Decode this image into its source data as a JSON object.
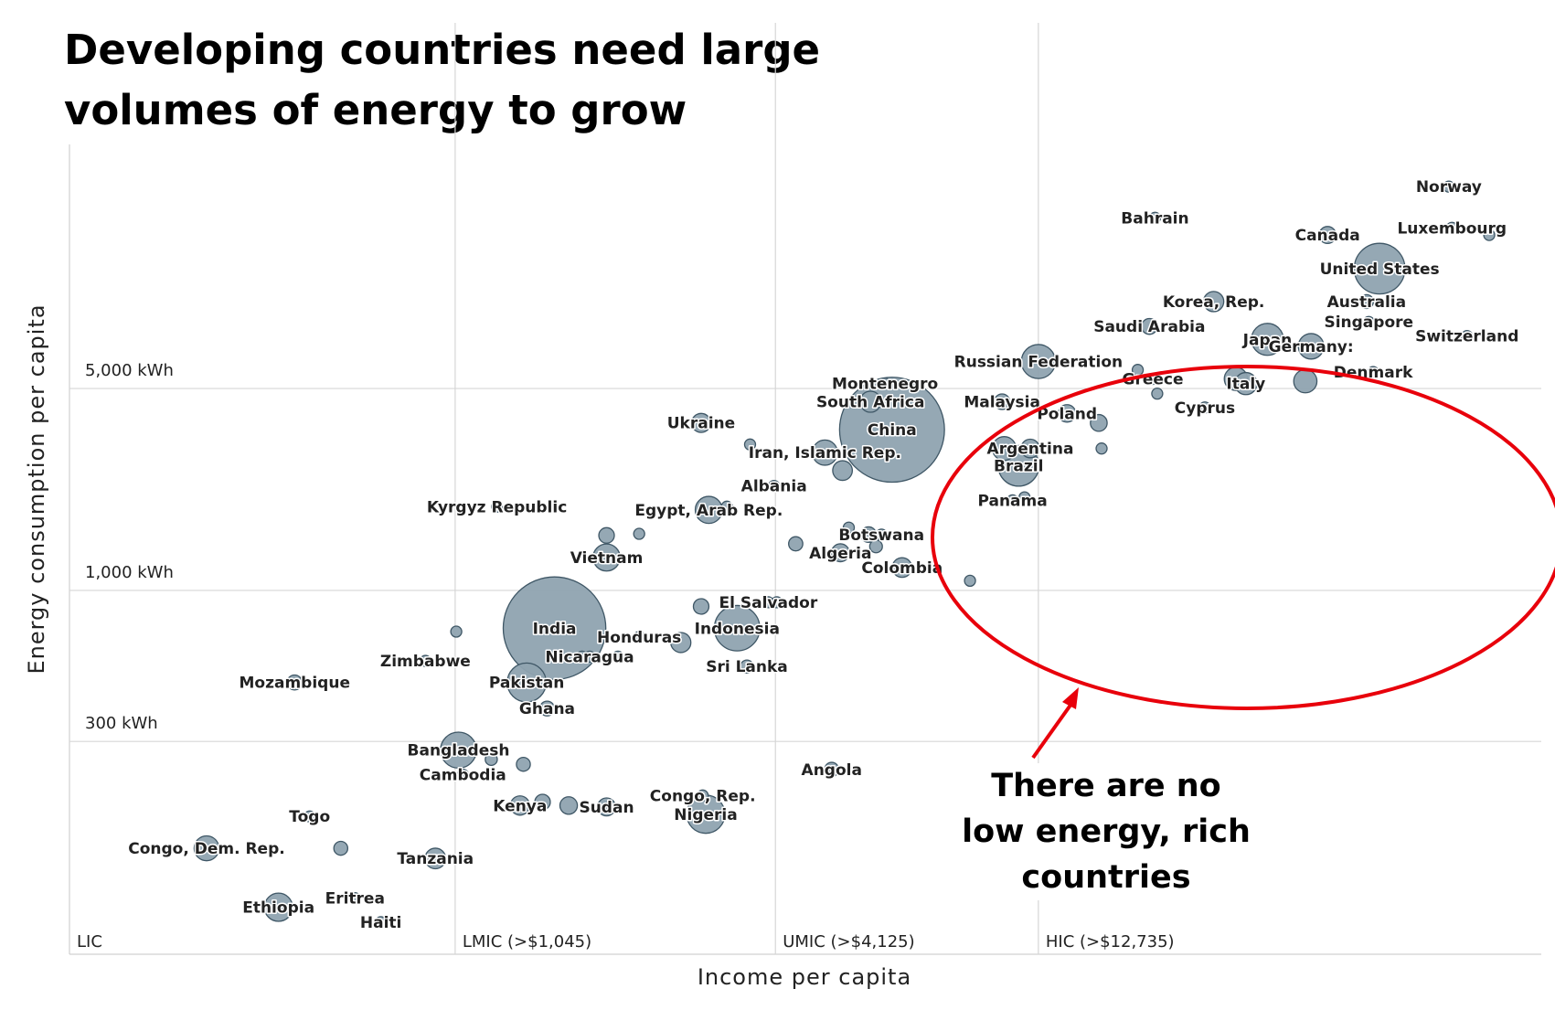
{
  "chart_data": {
    "type": "scatter",
    "title": "Developing countries need large volumes of energy to grow",
    "title_lines": [
      "Developing countries need large",
      "volumes of energy to grow"
    ],
    "xlabel": "Income per capita",
    "ylabel": "Energy consumption per capita",
    "ylim": [
      55,
      35000
    ],
    "xlim": [
      200,
      110000
    ],
    "x_scale": "log",
    "y_scale": "log",
    "y_ticks": [
      {
        "value": 300,
        "label": "300 kWh"
      },
      {
        "value": 1000,
        "label": "1,000 kWh"
      },
      {
        "value": 5000,
        "label": "5,000 kWh"
      }
    ],
    "income_bands": [
      {
        "label": "LIC",
        "from": 200
      },
      {
        "label": "LMIC (>$1,045)",
        "from": 1045
      },
      {
        "label": "UMIC (>$4,125)",
        "from": 4125
      },
      {
        "label": "HIC (>$12,735)",
        "from": 12735
      }
    ],
    "grid": true,
    "marker_color": "#8fa3b0",
    "marker_edge": "#3f5766",
    "annotation": {
      "lines": [
        "There are no",
        "low energy, rich countries"
      ],
      "ellipse_color": "#e8000b",
      "arrow_color": "#e8000b"
    },
    "points": [
      {
        "name": "Norway",
        "x": 74000,
        "y": 25000,
        "pop": 5
      },
      {
        "name": "Bahrain",
        "x": 21000,
        "y": 19500,
        "pop": 1.3
      },
      {
        "name": "Luxembourg",
        "x": 75000,
        "y": 18000,
        "pop": 0.6
      },
      {
        "name": "Canada",
        "x": 44000,
        "y": 17000,
        "pop": 36
      },
      {
        "name": "United States",
        "x": 55000,
        "y": 13000,
        "pop": 320
      },
      {
        "name": "Australia",
        "x": 52000,
        "y": 10000,
        "pop": 24
      },
      {
        "name": "Korea, Rep.",
        "x": 27000,
        "y": 10000,
        "pop": 51
      },
      {
        "name": "Saudi Arabia",
        "x": 20500,
        "y": 8200,
        "pop": 31
      },
      {
        "name": "Singapore",
        "x": 52500,
        "y": 8500,
        "pop": 5.5
      },
      {
        "name": "Switzerland",
        "x": 80000,
        "y": 7600,
        "pop": 8.2
      },
      {
        "name": "Japan",
        "x": 34000,
        "y": 7400,
        "pop": 127
      },
      {
        "name": "Germany:",
        "x": 41000,
        "y": 7000,
        "pop": 81
      },
      {
        "name": "Russian Federation",
        "x": 12736,
        "y": 6200,
        "pop": 144
      },
      {
        "name": "Greece",
        "x": 20800,
        "y": 5400,
        "pop": 11
      },
      {
        "name": "Denmark",
        "x": 53500,
        "y": 5700,
        "pop": 5.7
      },
      {
        "name": "Italy",
        "x": 31000,
        "y": 5200,
        "pop": 61
      },
      {
        "name": "Cyprus",
        "x": 26000,
        "y": 4300,
        "pop": 1.2
      },
      {
        "name": "Montenegro",
        "x": 6600,
        "y": 5200,
        "pop": 0.6
      },
      {
        "name": "South Africa",
        "x": 6200,
        "y": 4500,
        "pop": 55
      },
      {
        "name": "Malaysia",
        "x": 10900,
        "y": 4500,
        "pop": 30
      },
      {
        "name": "Poland",
        "x": 14400,
        "y": 4100,
        "pop": 38
      },
      {
        "name": "China",
        "x": 6800,
        "y": 3600,
        "pop": 1370
      },
      {
        "name": "Ukraine",
        "x": 3000,
        "y": 3800,
        "pop": 45
      },
      {
        "name": "Argentina",
        "x": 12300,
        "y": 3100,
        "pop": 43
      },
      {
        "name": "Iran, Islamic Rep.",
        "x": 5100,
        "y": 3000,
        "pop": 79
      },
      {
        "name": "Brazil",
        "x": 11700,
        "y": 2700,
        "pop": 206
      },
      {
        "name": "Albania",
        "x": 4100,
        "y": 2300,
        "pop": 2.9
      },
      {
        "name": "Panama",
        "x": 11400,
        "y": 2050,
        "pop": 3.9
      },
      {
        "name": "Kyrgyz Republic",
        "x": 1250,
        "y": 1950,
        "pop": 6
      },
      {
        "name": "Egypt, Arab Rep.",
        "x": 3100,
        "y": 1900,
        "pop": 91
      },
      {
        "name": "Botswana",
        "x": 6500,
        "y": 1560,
        "pop": 2.2
      },
      {
        "name": "Vietnam",
        "x": 2000,
        "y": 1300,
        "pop": 91
      },
      {
        "name": "Algeria",
        "x": 5450,
        "y": 1350,
        "pop": 40
      },
      {
        "name": "Colombia",
        "x": 7100,
        "y": 1200,
        "pop": 48
      },
      {
        "name": "El Salvador",
        "x": 4000,
        "y": 910,
        "pop": 6.3
      },
      {
        "name": "India",
        "x": 1600,
        "y": 740,
        "pop": 1310
      },
      {
        "name": "Honduras",
        "x": 2300,
        "y": 690,
        "pop": 8.1
      },
      {
        "name": "Indonesia",
        "x": 3500,
        "y": 740,
        "pop": 257
      },
      {
        "name": "Nicaragua",
        "x": 1860,
        "y": 590,
        "pop": 6.1
      },
      {
        "name": "Zimbabwe",
        "x": 920,
        "y": 570,
        "pop": 15
      },
      {
        "name": "Sri Lanka",
        "x": 3650,
        "y": 545,
        "pop": 21
      },
      {
        "name": "Mozambique",
        "x": 525,
        "y": 480,
        "pop": 28
      },
      {
        "name": "Pakistan",
        "x": 1420,
        "y": 480,
        "pop": 189
      },
      {
        "name": "Ghana",
        "x": 1550,
        "y": 390,
        "pop": 27
      },
      {
        "name": "Bangladesh",
        "x": 1060,
        "y": 280,
        "pop": 161
      },
      {
        "name": "Cambodia",
        "x": 1080,
        "y": 230,
        "pop": 15.6
      },
      {
        "name": "Angola",
        "x": 5250,
        "y": 240,
        "pop": 25
      },
      {
        "name": "Congo, Rep.",
        "x": 3020,
        "y": 195,
        "pop": 4.6
      },
      {
        "name": "Kenya",
        "x": 1380,
        "y": 180,
        "pop": 46
      },
      {
        "name": "Sudan",
        "x": 2000,
        "y": 178,
        "pop": 40
      },
      {
        "name": "Nigeria",
        "x": 3060,
        "y": 168,
        "pop": 182
      },
      {
        "name": "Togo",
        "x": 560,
        "y": 165,
        "pop": 7.3
      },
      {
        "name": "Congo, Dem. Rep.",
        "x": 360,
        "y": 128,
        "pop": 77
      },
      {
        "name": "Tanzania",
        "x": 960,
        "y": 118,
        "pop": 53
      },
      {
        "name": "Eritrea",
        "x": 680,
        "y": 86,
        "pop": 5
      },
      {
        "name": "Ethiopia",
        "x": 490,
        "y": 80,
        "pop": 99
      },
      {
        "name": "Haiti",
        "x": 760,
        "y": 71,
        "pop": 10.7
      }
    ],
    "unlabeled_points": [
      {
        "x": 2000,
        "y": 1550,
        "pop": 30
      },
      {
        "x": 2300,
        "y": 1570,
        "pop": 12
      },
      {
        "x": 3350,
        "y": 1950,
        "pop": 10
      },
      {
        "x": 3700,
        "y": 3200,
        "pop": 6
      },
      {
        "x": 4500,
        "y": 1450,
        "pop": 25
      },
      {
        "x": 5500,
        "y": 2600,
        "pop": 48
      },
      {
        "x": 5650,
        "y": 1650,
        "pop": 10
      },
      {
        "x": 6150,
        "y": 1560,
        "pop": 30
      },
      {
        "x": 6350,
        "y": 1420,
        "pop": 20
      },
      {
        "x": 9500,
        "y": 1080,
        "pop": 6
      },
      {
        "x": 12000,
        "y": 2100,
        "pop": 12
      },
      {
        "x": 11000,
        "y": 3100,
        "pop": 70
      },
      {
        "x": 16500,
        "y": 3800,
        "pop": 35
      },
      {
        "x": 16700,
        "y": 3100,
        "pop": 10
      },
      {
        "x": 19500,
        "y": 5800,
        "pop": 5
      },
      {
        "x": 21200,
        "y": 4800,
        "pop": 11
      },
      {
        "x": 29700,
        "y": 5400,
        "pop": 67
      },
      {
        "x": 40000,
        "y": 5300,
        "pop": 67
      },
      {
        "x": 3000,
        "y": 880,
        "pop": 30
      },
      {
        "x": 2100,
        "y": 590,
        "pop": 6
      },
      {
        "x": 2750,
        "y": 660,
        "pop": 50
      },
      {
        "x": 4150,
        "y": 910,
        "pop": 4
      },
      {
        "x": 1220,
        "y": 260,
        "pop": 18
      },
      {
        "x": 1400,
        "y": 250,
        "pop": 24
      },
      {
        "x": 640,
        "y": 128,
        "pop": 24
      },
      {
        "x": 1700,
        "y": 180,
        "pop": 38
      },
      {
        "x": 1520,
        "y": 185,
        "pop": 30
      },
      {
        "x": 1050,
        "y": 720,
        "pop": 3
      },
      {
        "x": 1800,
        "y": 590,
        "pop": 14
      },
      {
        "x": 88000,
        "y": 17000,
        "pop": 0.5
      }
    ]
  }
}
